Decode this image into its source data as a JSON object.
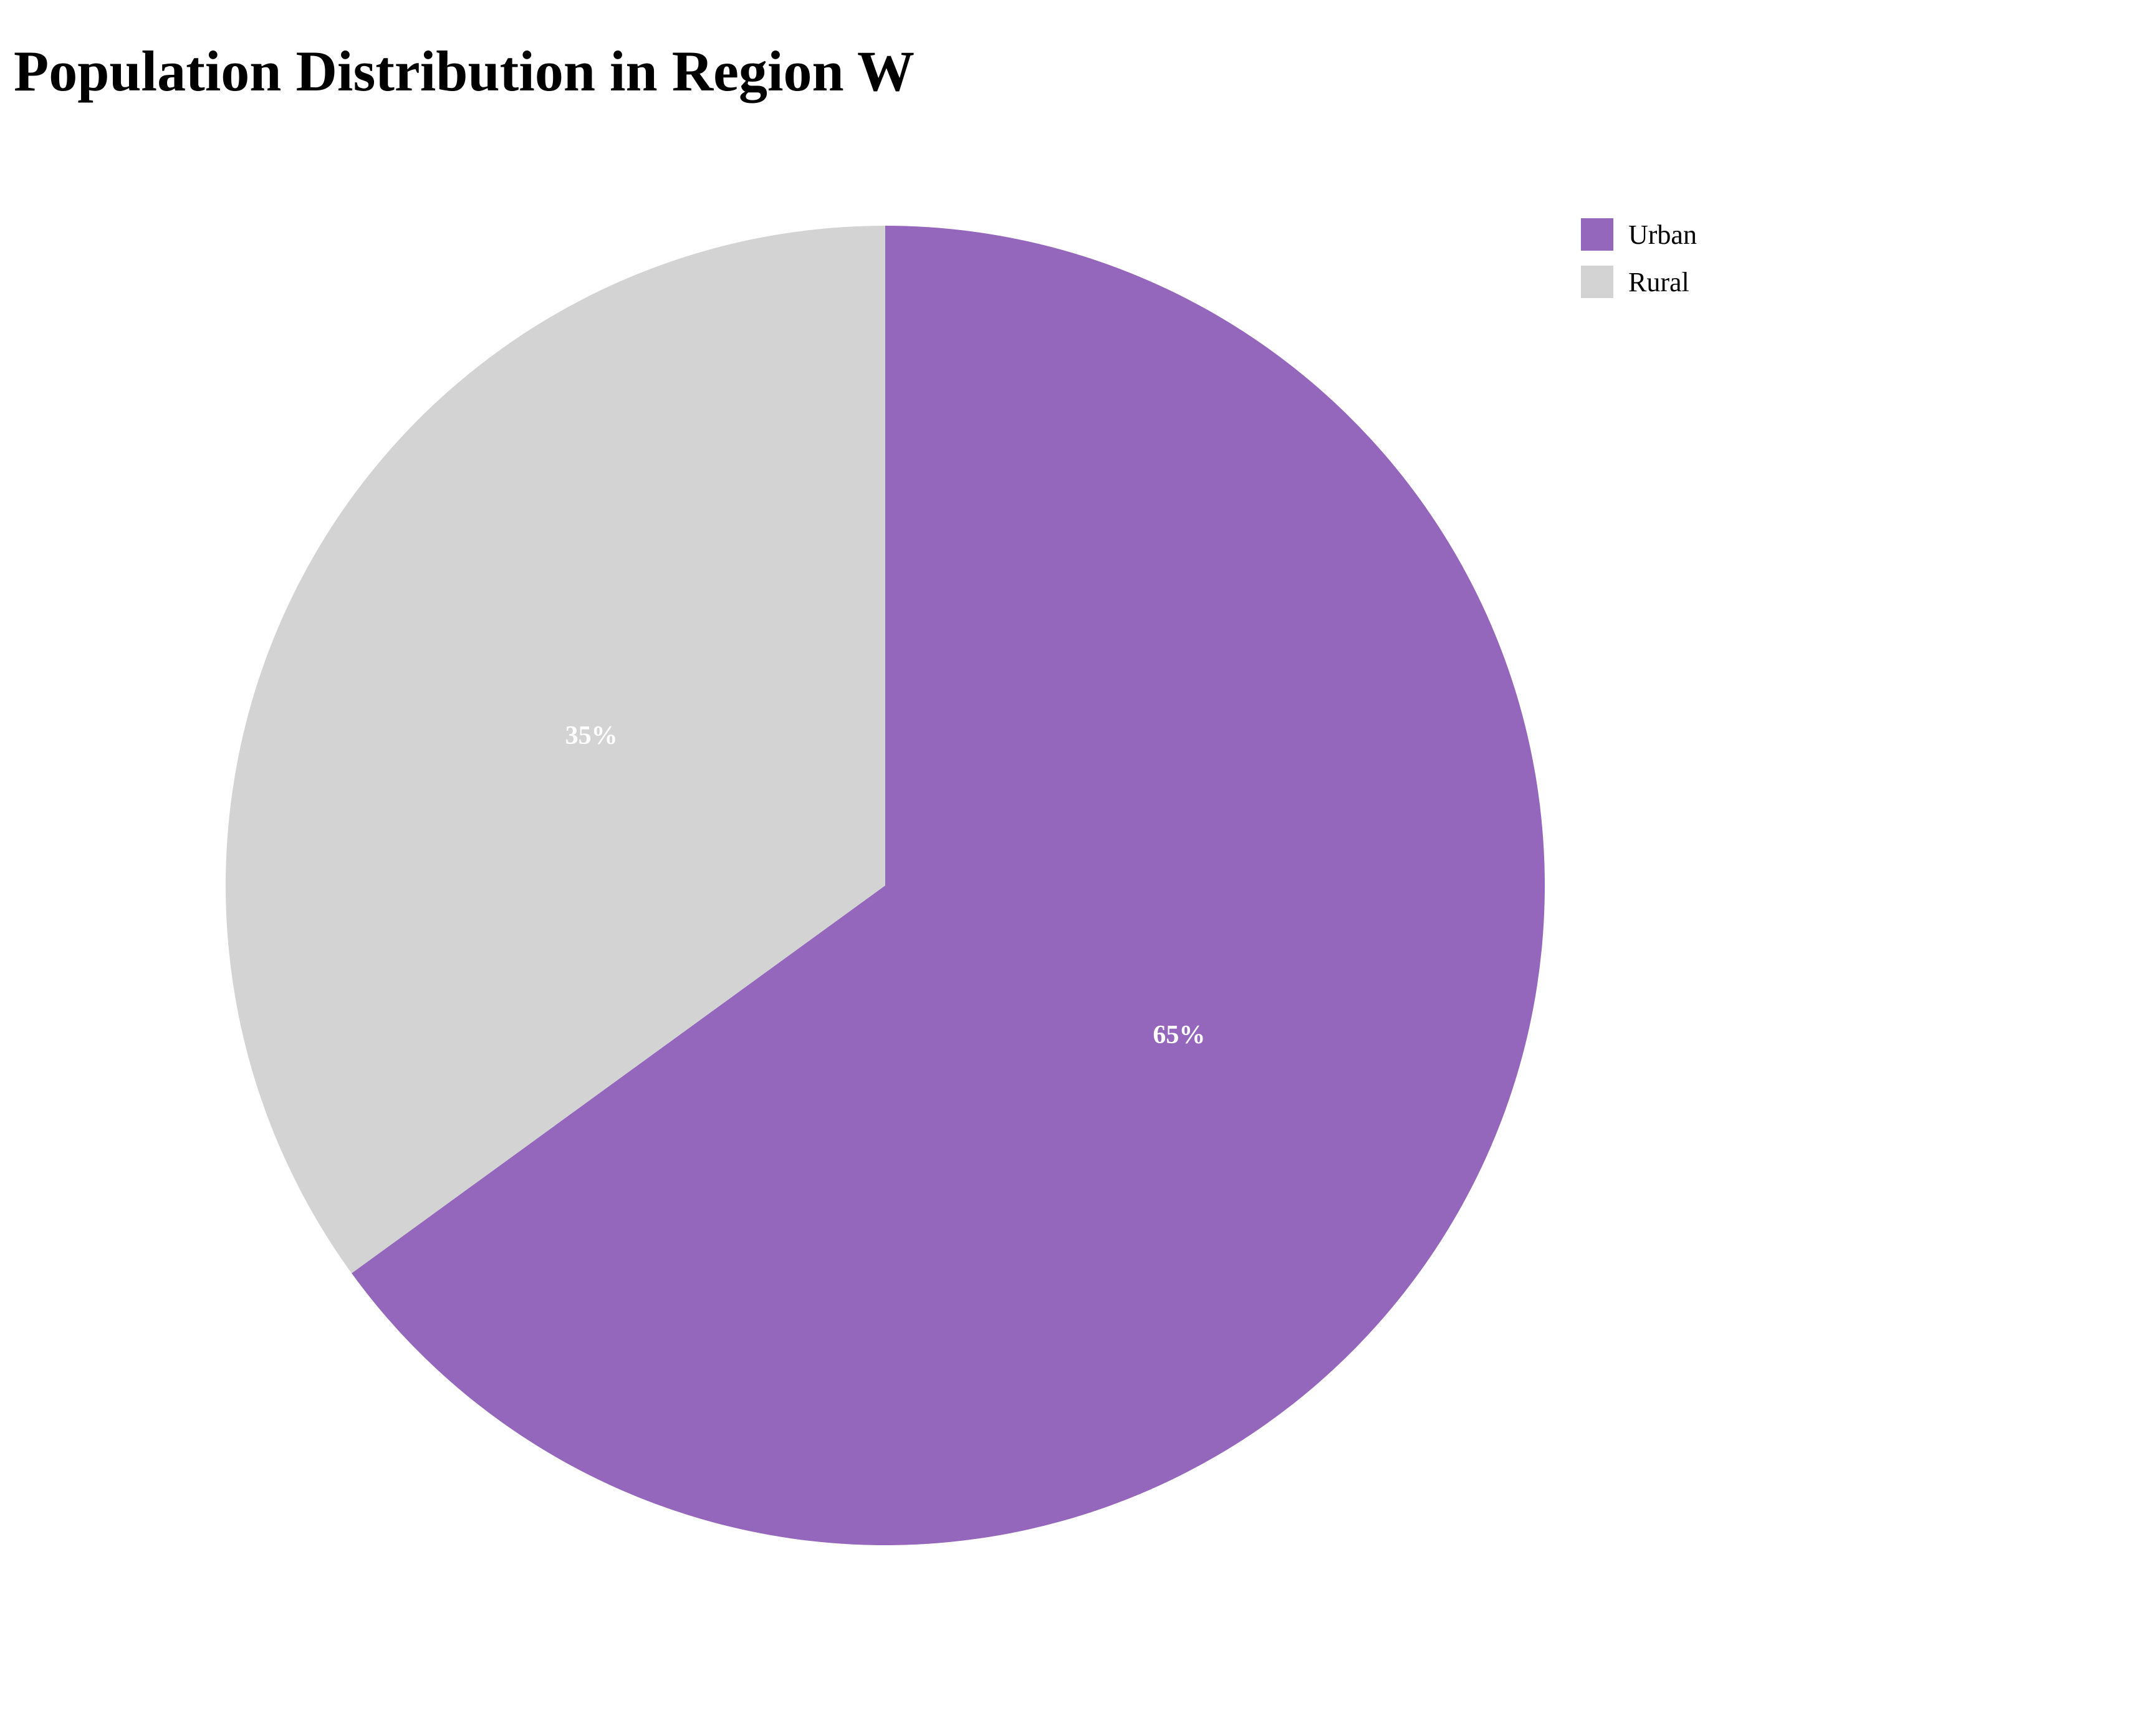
{
  "chart_data": {
    "type": "pie",
    "title": "Population Distribution in Region W",
    "categories": [
      "Urban",
      "Rural"
    ],
    "values": [
      65,
      35
    ],
    "labels": [
      "65%",
      "35%"
    ],
    "colors": [
      "#9467bd",
      "#d3d3d3"
    ],
    "label_color": "#ffffff",
    "start_angle": "12 o'clock",
    "direction": "clockwise",
    "legend": {
      "placement": "top-right",
      "entries": [
        "Urban",
        "Rural"
      ]
    }
  }
}
